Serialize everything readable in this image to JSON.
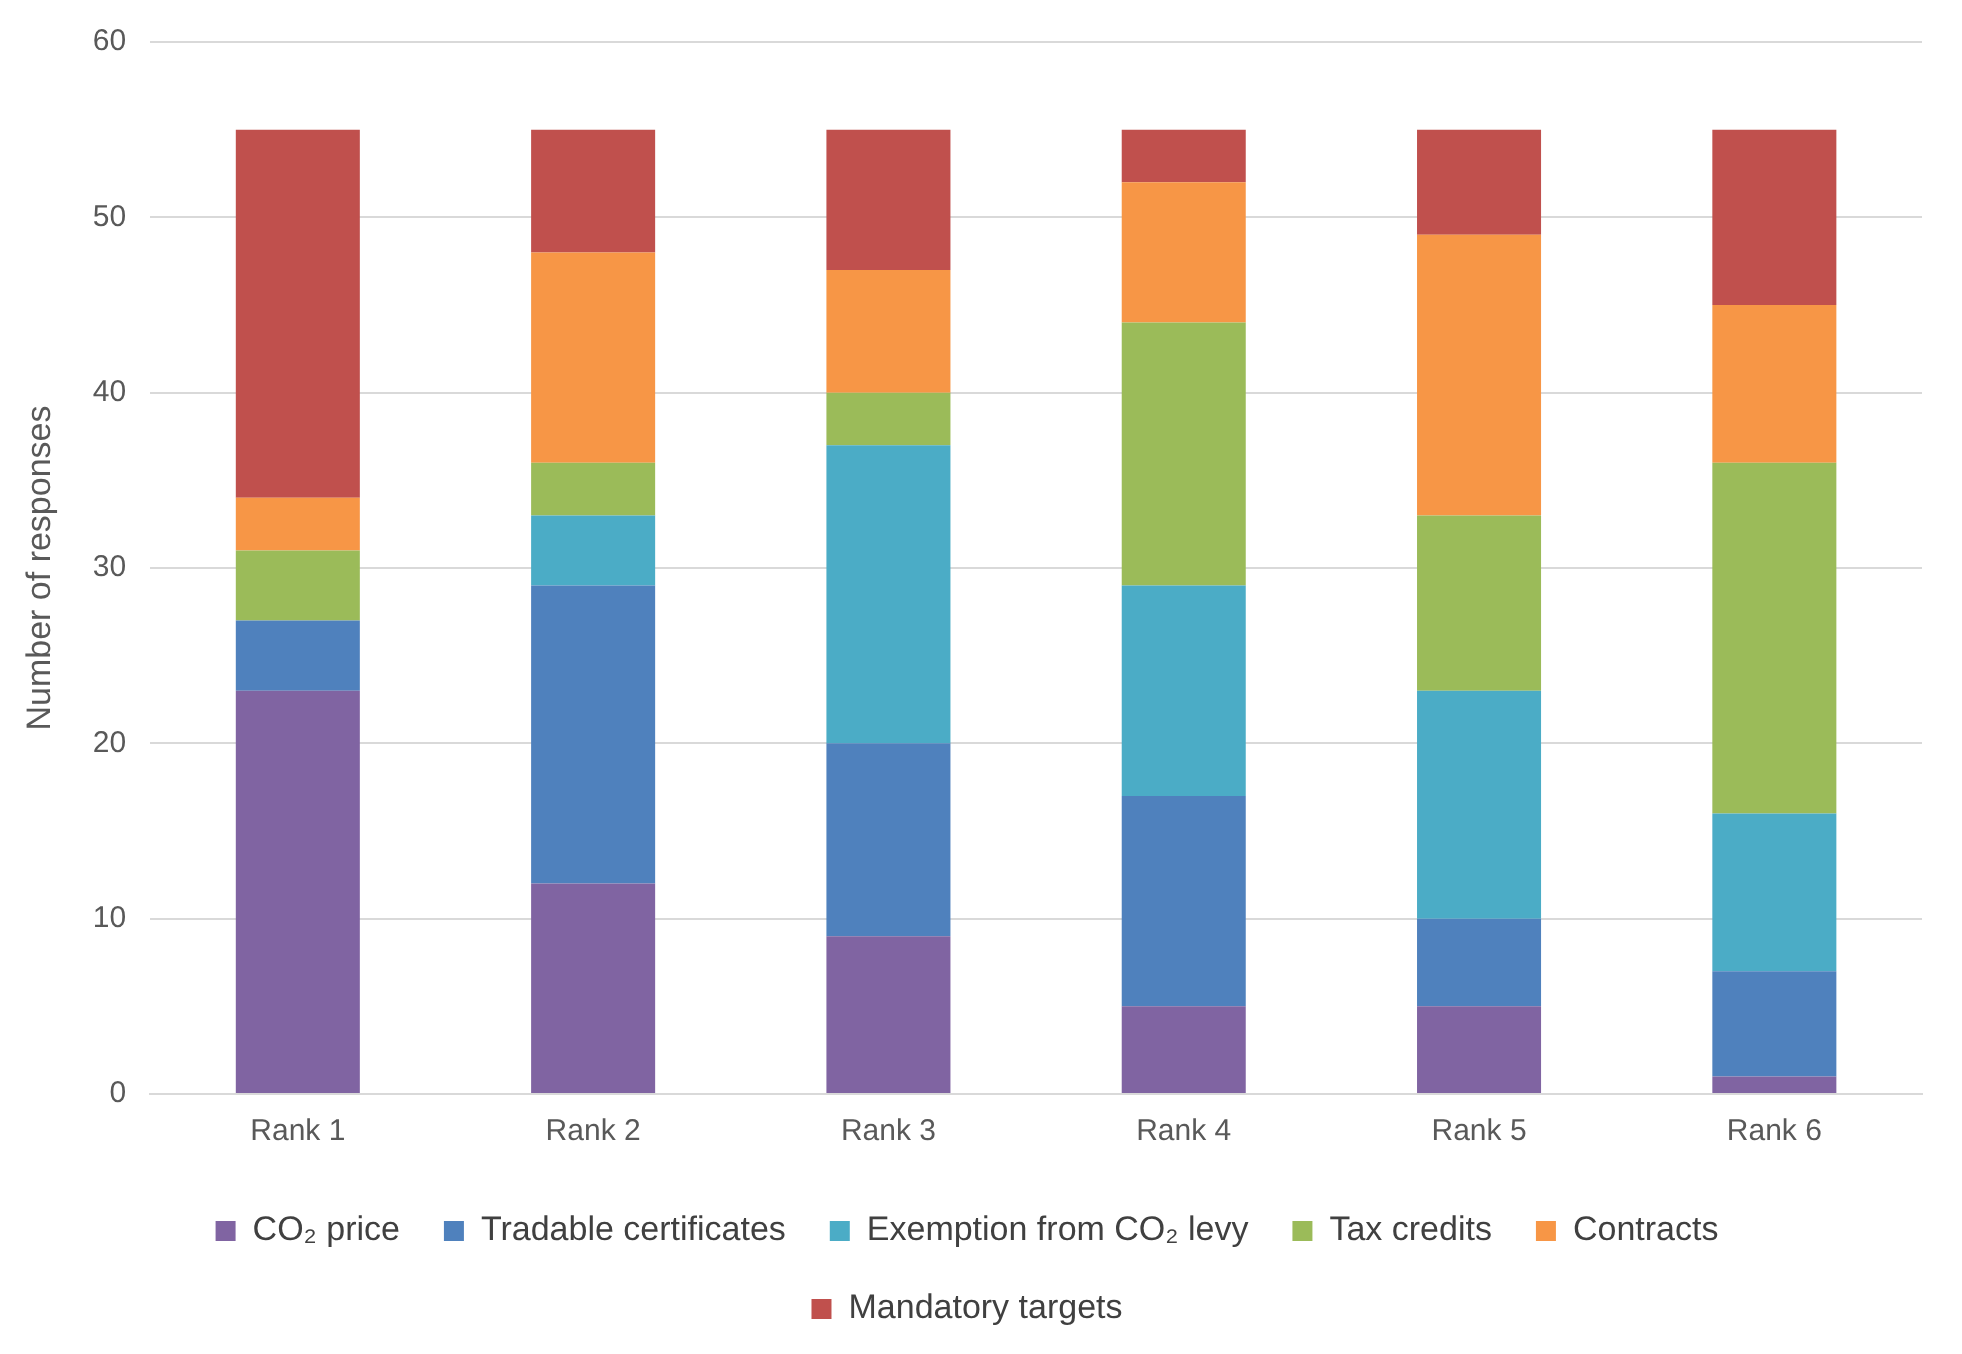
{
  "chart_data": {
    "type": "bar",
    "stacked": true,
    "ylabel": "Number of responses",
    "categories": [
      "Rank 1",
      "Rank 2",
      "Rank 3",
      "Rank 4",
      "Rank 5",
      "Rank 6"
    ],
    "series": [
      {
        "name": "CO₂ price",
        "color": "#8064a2",
        "values": [
          23,
          12,
          9,
          5,
          5,
          1
        ]
      },
      {
        "name": "Tradable certificates",
        "color": "#4f81bd",
        "values": [
          4,
          17,
          11,
          12,
          5,
          6
        ]
      },
      {
        "name": "Exemption from CO₂ levy",
        "color": "#4bacc6",
        "values": [
          0,
          4,
          17,
          12,
          13,
          9
        ]
      },
      {
        "name": "Tax credits",
        "color": "#9bbb59",
        "values": [
          4,
          3,
          3,
          15,
          10,
          20
        ]
      },
      {
        "name": "Contracts",
        "color": "#f79646",
        "values": [
          3,
          12,
          7,
          8,
          16,
          9
        ]
      },
      {
        "name": "Mandatory targets",
        "color": "#c0504d",
        "values": [
          21,
          7,
          8,
          3,
          6,
          10
        ]
      }
    ],
    "ylim": [
      0,
      60
    ],
    "yticks": [
      0,
      10,
      20,
      30,
      40,
      50,
      60
    ],
    "grid": "y",
    "legend": "bottom"
  }
}
